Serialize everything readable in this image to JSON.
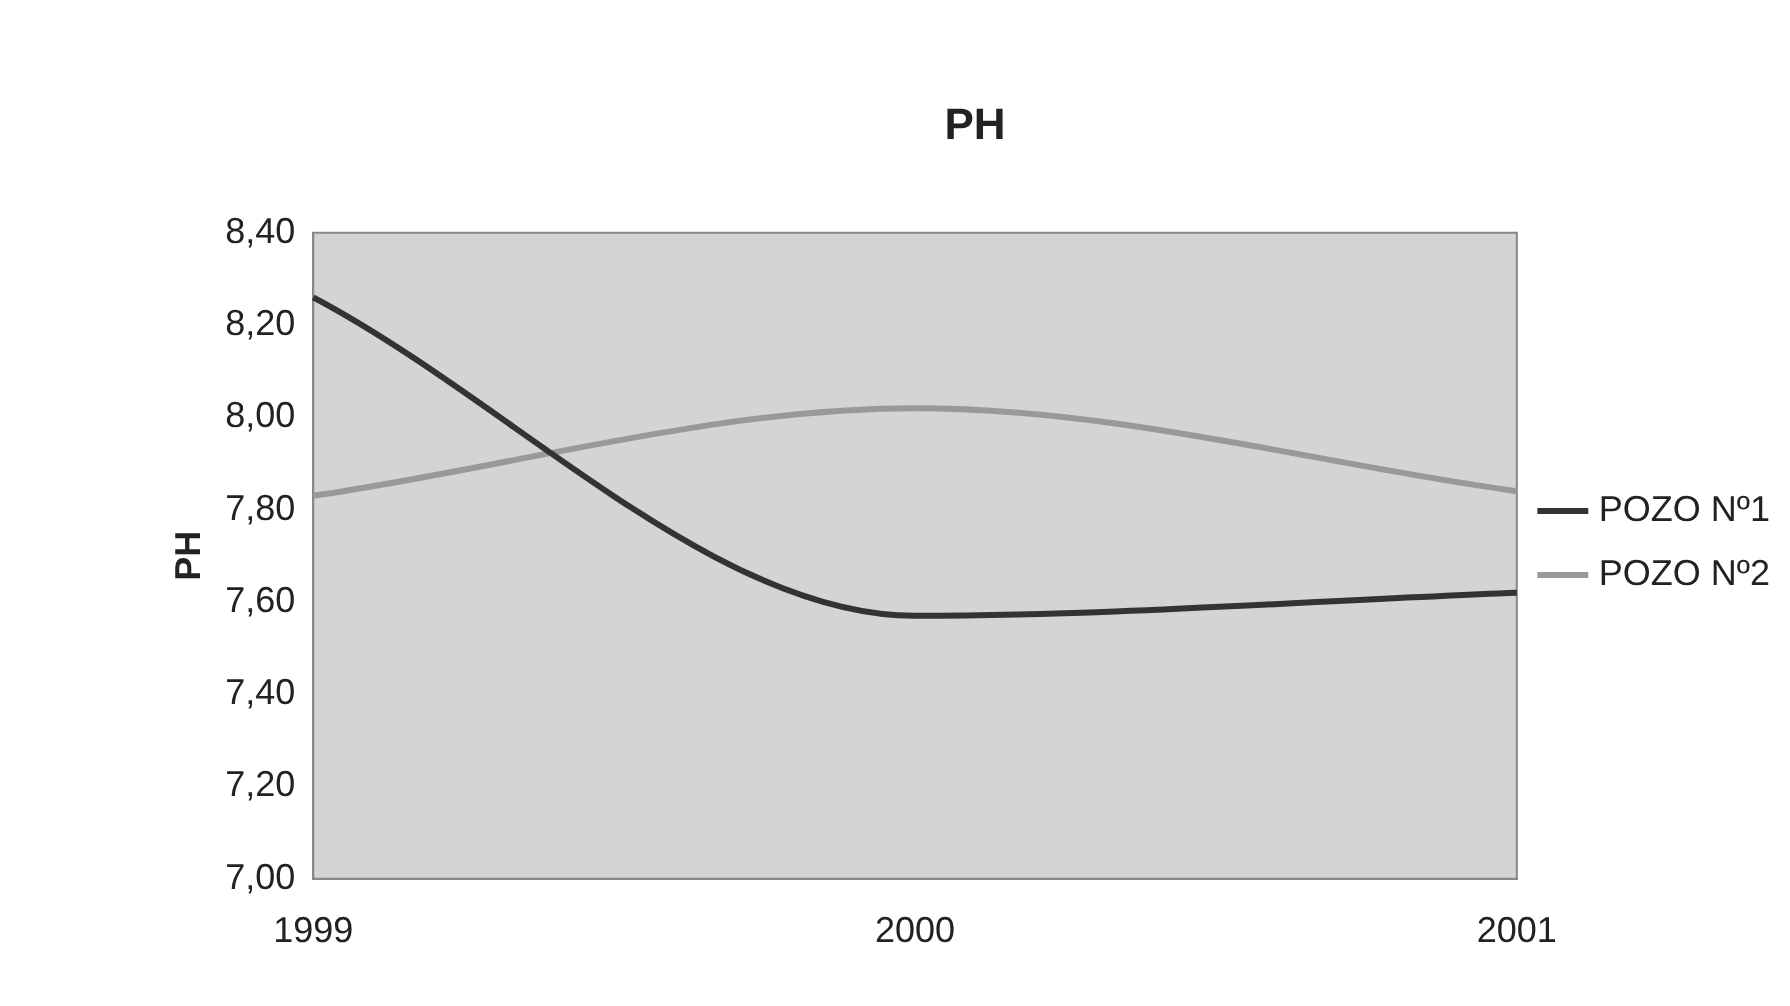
{
  "chart_data": {
    "type": "line",
    "title": "PH",
    "ylabel": "PH",
    "categories": [
      "1999",
      "2000",
      "2001"
    ],
    "series": [
      {
        "name": "POZO Nº1",
        "color": "#333333",
        "values": [
          8.26,
          7.57,
          7.62
        ]
      },
      {
        "name": "POZO Nº2",
        "color": "#999999",
        "values": [
          7.83,
          8.02,
          7.84
        ]
      }
    ],
    "ylim": [
      7.0,
      8.4
    ],
    "yticks": [
      {
        "value": 7.0,
        "label": "7,00"
      },
      {
        "value": 7.2,
        "label": "7,20"
      },
      {
        "value": 7.4,
        "label": "7,40"
      },
      {
        "value": 7.6,
        "label": "7,60"
      },
      {
        "value": 7.8,
        "label": "7,80"
      },
      {
        "value": 8.0,
        "label": "8,00"
      },
      {
        "value": 8.2,
        "label": "8,20"
      },
      {
        "value": 8.4,
        "label": "8,40"
      }
    ],
    "grid": false,
    "legend": "right",
    "marker": "none",
    "line_style": "solid"
  }
}
